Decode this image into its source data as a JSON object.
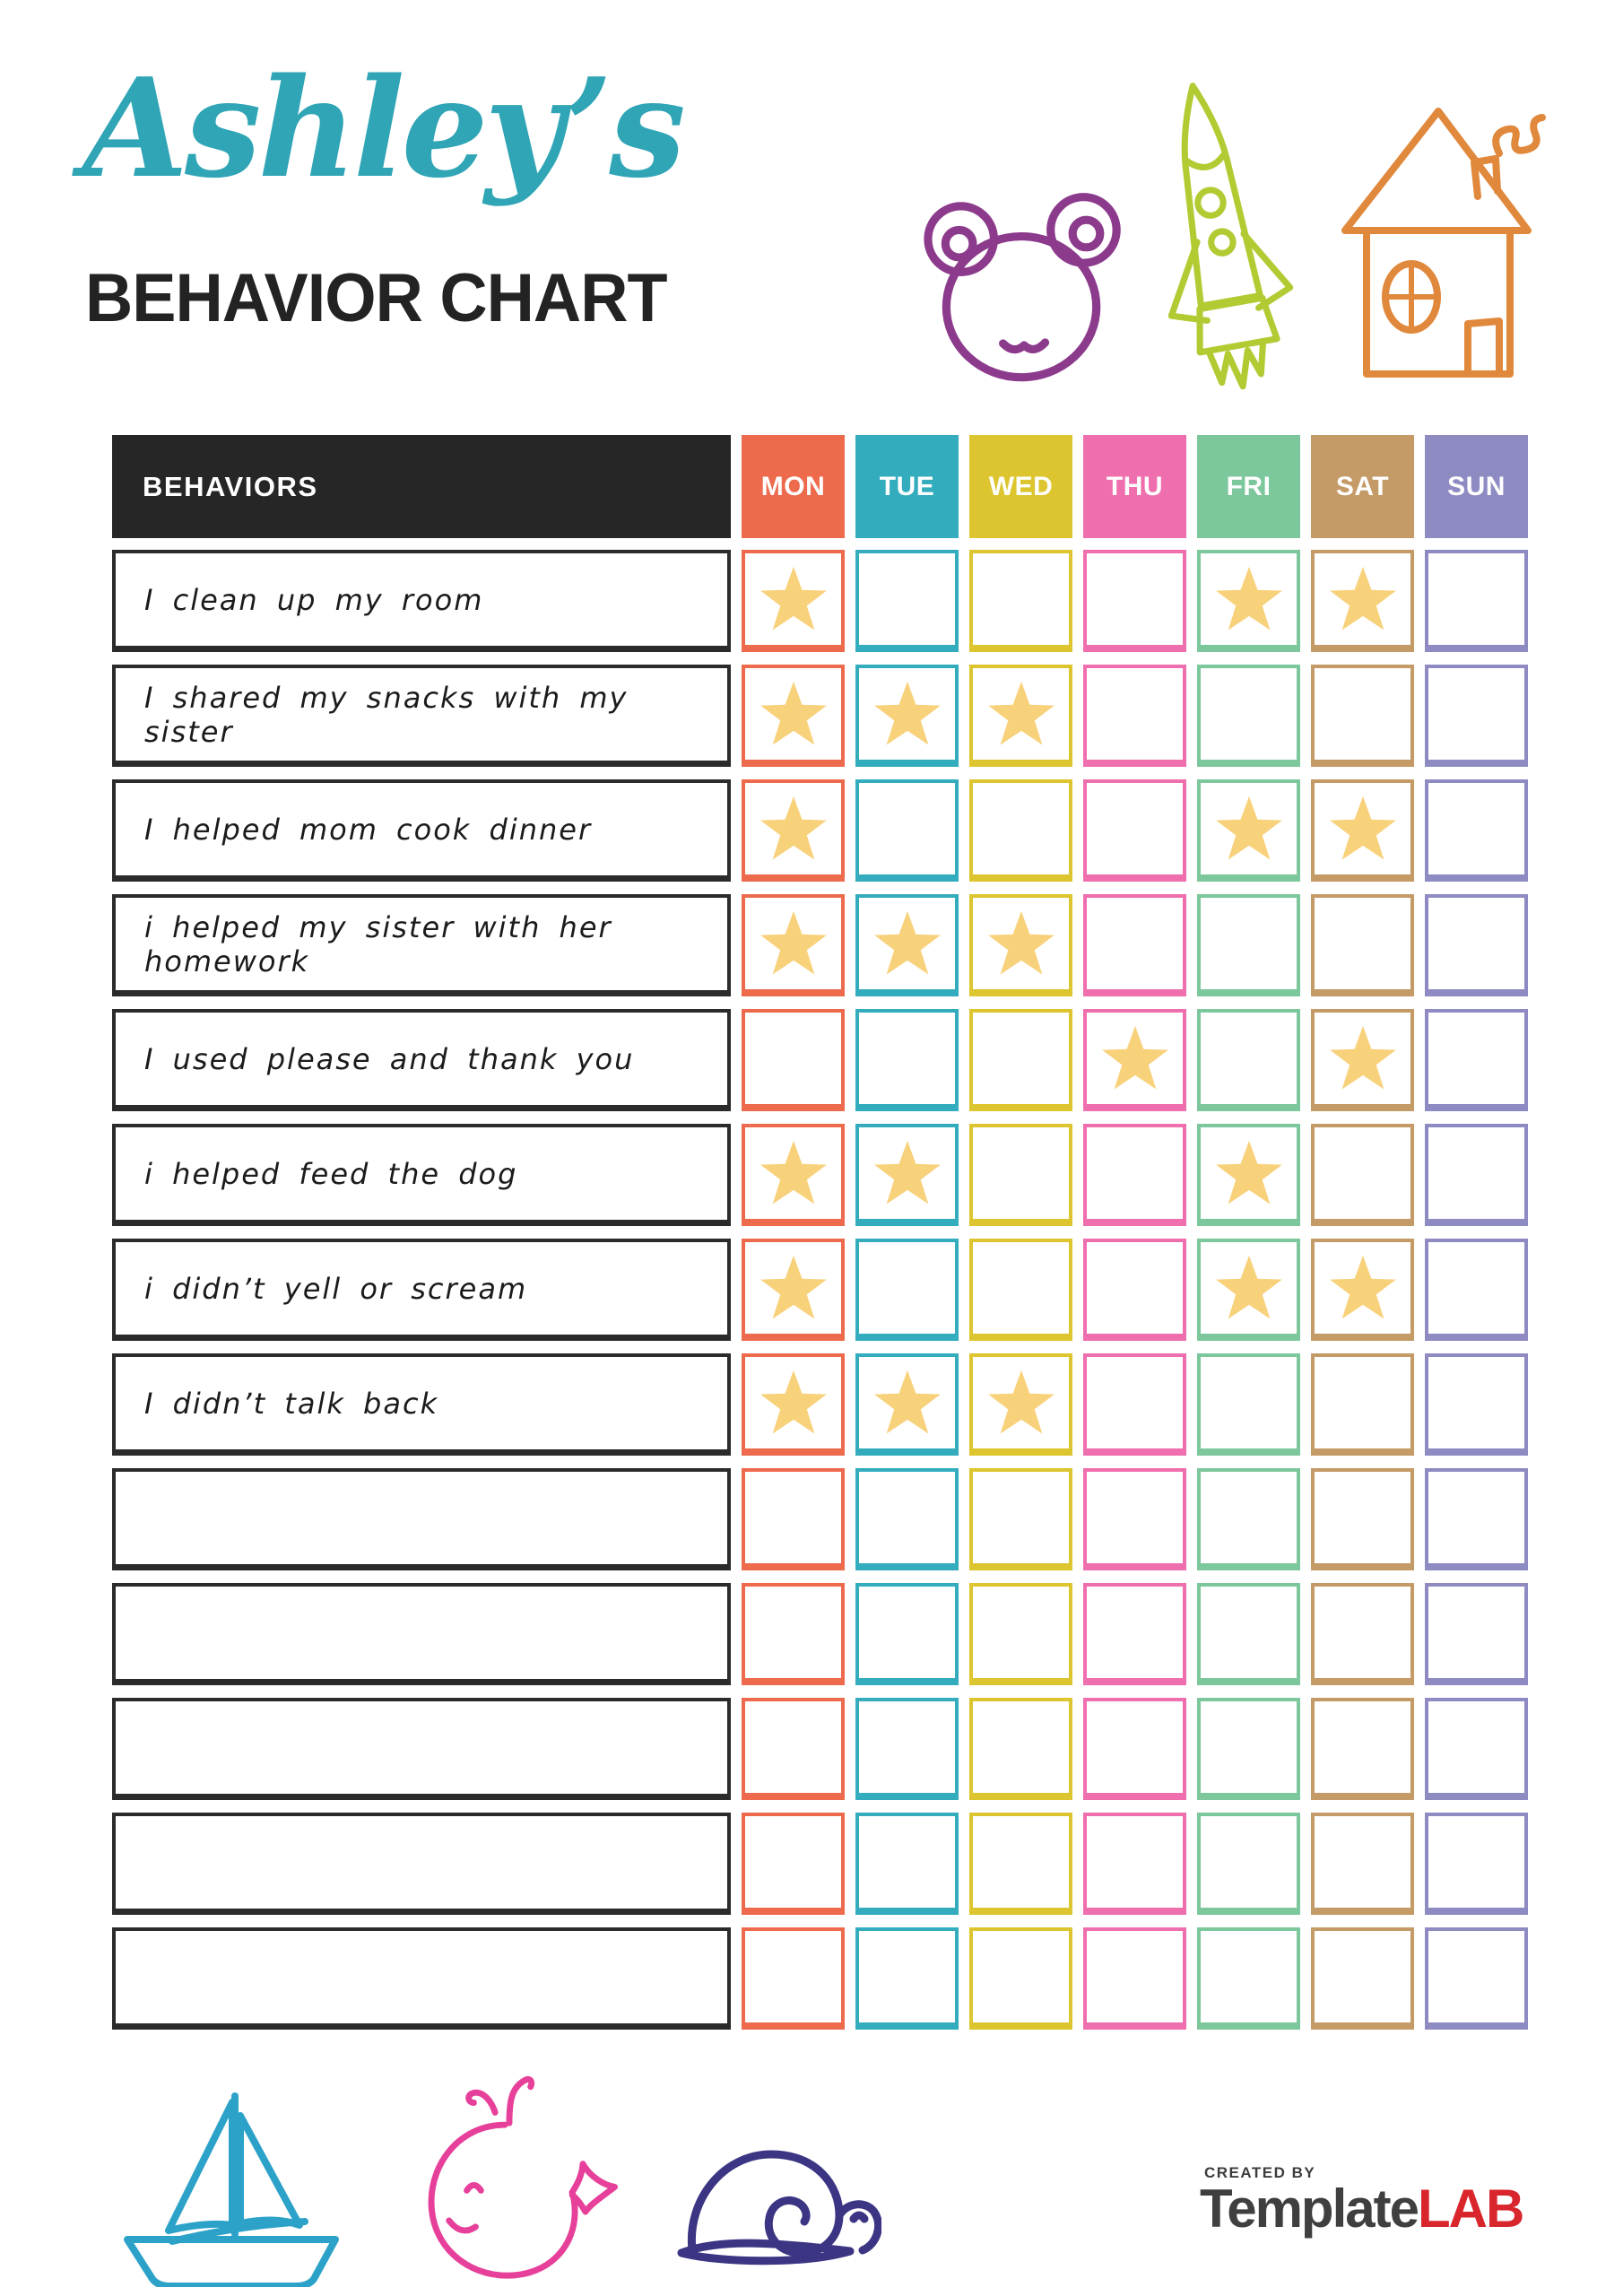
{
  "page": {
    "script_title": "Ashley’s",
    "main_title": "BEHAVIOR CHART"
  },
  "colors": {
    "title_teal": "#2FA5B5",
    "behaviors_header_bg": "#262626",
    "behavior_border": "#2B2B2B"
  },
  "table": {
    "behaviors_header": "BEHAVIORS",
    "star_color": "#F8D17B",
    "days": [
      {
        "label": "MON",
        "color": "#ED6A4D"
      },
      {
        "label": "TUE",
        "color": "#33ACBE"
      },
      {
        "label": "WED",
        "color": "#DCC52F"
      },
      {
        "label": "THU",
        "color": "#EF6FAE"
      },
      {
        "label": "FRI",
        "color": "#7CC79B"
      },
      {
        "label": "SAT",
        "color": "#C49A66"
      },
      {
        "label": "SUN",
        "color": "#8E8BC3"
      }
    ],
    "rows": [
      {
        "behavior": "I clean up my room",
        "stars": [
          1,
          0,
          0,
          0,
          1,
          1,
          0
        ]
      },
      {
        "behavior": "I shared my snacks with my sister",
        "stars": [
          1,
          1,
          1,
          0,
          0,
          0,
          0
        ]
      },
      {
        "behavior": "I helped mom cook dinner",
        "stars": [
          1,
          0,
          0,
          0,
          1,
          1,
          0
        ]
      },
      {
        "behavior": "i helped my sister with her homework",
        "stars": [
          1,
          1,
          1,
          0,
          0,
          0,
          0
        ]
      },
      {
        "behavior": "I used please and thank you",
        "stars": [
          0,
          0,
          0,
          1,
          0,
          1,
          0
        ]
      },
      {
        "behavior": "i helped feed the dog",
        "stars": [
          1,
          1,
          0,
          0,
          1,
          0,
          0
        ]
      },
      {
        "behavior": "i didn’t yell or scream",
        "stars": [
          1,
          0,
          0,
          0,
          1,
          1,
          0
        ]
      },
      {
        "behavior": "I didn’t talk back",
        "stars": [
          1,
          1,
          1,
          0,
          0,
          0,
          0
        ]
      },
      {
        "behavior": "",
        "stars": [
          0,
          0,
          0,
          0,
          0,
          0,
          0
        ]
      },
      {
        "behavior": "",
        "stars": [
          0,
          0,
          0,
          0,
          0,
          0,
          0
        ]
      },
      {
        "behavior": "",
        "stars": [
          0,
          0,
          0,
          0,
          0,
          0,
          0
        ]
      },
      {
        "behavior": "",
        "stars": [
          0,
          0,
          0,
          0,
          0,
          0,
          0
        ]
      },
      {
        "behavior": "",
        "stars": [
          0,
          0,
          0,
          0,
          0,
          0,
          0
        ]
      }
    ]
  },
  "decorations": {
    "top": [
      {
        "name": "teddy-bear-doodle",
        "color": "#8C3A8C"
      },
      {
        "name": "rocket-doodle",
        "color": "#B2CB33"
      },
      {
        "name": "house-doodle",
        "color": "#E0883B"
      }
    ],
    "bottom": [
      {
        "name": "sailboat-doodle",
        "color": "#2DA2C9"
      },
      {
        "name": "whale-doodle",
        "color": "#E6409A"
      },
      {
        "name": "snail-doodle",
        "color": "#3B3583"
      }
    ]
  },
  "footer": {
    "created_by": "CREATED BY",
    "brand_primary": "Template",
    "brand_accent": "LAB",
    "accent_color": "#D8262C"
  }
}
